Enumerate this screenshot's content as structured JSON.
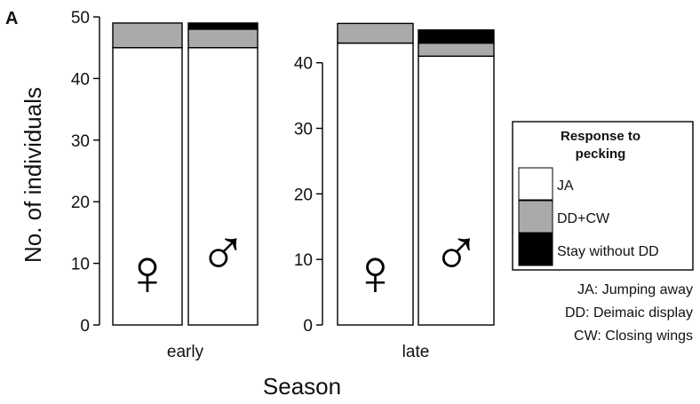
{
  "panel_label": "A",
  "chart_data": {
    "type": "bar",
    "stacked": true,
    "ylabel": "No. of individuals",
    "xlabel": "Season",
    "series": [
      {
        "name": "JA",
        "color": "#ffffff"
      },
      {
        "name": "DD+CW",
        "color": "#aaaaaa"
      },
      {
        "name": "Stay without DD",
        "color": "#000000"
      }
    ],
    "panels": [
      {
        "category": "early",
        "ylim": [
          0,
          50
        ],
        "yticks": [
          0,
          10,
          20,
          30,
          40,
          50
        ],
        "bars": [
          {
            "sex": "female",
            "symbol": "♀",
            "values": [
              45,
              4,
              0
            ]
          },
          {
            "sex": "male",
            "symbol": "♂",
            "values": [
              45,
              3,
              1
            ]
          }
        ]
      },
      {
        "category": "late",
        "ylim": [
          0,
          47
        ],
        "yticks": [
          0,
          10,
          20,
          30,
          40
        ],
        "bars": [
          {
            "sex": "female",
            "symbol": "♀",
            "values": [
              43,
              3,
              0
            ]
          },
          {
            "sex": "male",
            "symbol": "♂",
            "values": [
              41,
              2,
              2
            ]
          }
        ]
      }
    ],
    "legend": {
      "title_line1": "Response to",
      "title_line2": "pecking",
      "placement": "right"
    },
    "abbreviations": [
      "JA: Jumping away",
      "DD: Deimaic display",
      "CW: Closing wings"
    ]
  }
}
